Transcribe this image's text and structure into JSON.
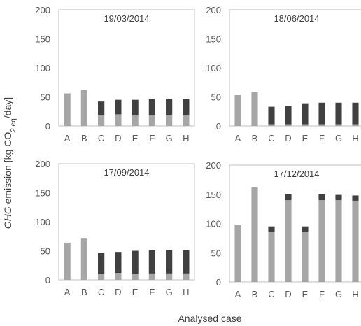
{
  "chart_data": {
    "type": "bar",
    "stacked": true,
    "ylabel": {
      "parts": [
        {
          "text": "GHG",
          "italic": true
        },
        {
          "text": " emission [kg CO"
        },
        {
          "text": "2 eq",
          "sub": true
        },
        {
          "text": "/day]"
        }
      ]
    },
    "xlabel": "Analysed case",
    "ylim": [
      0,
      200
    ],
    "yticks": [
      "0",
      "50",
      "100",
      "150",
      "200"
    ],
    "categories": [
      "A",
      "B",
      "C",
      "D",
      "E",
      "F",
      "G",
      "H"
    ],
    "colors": {
      "light": "#a6a6a6",
      "dark": "#404040"
    },
    "legend": "none",
    "grid": false,
    "panels": [
      {
        "title": "19/03/2014",
        "series": [
          {
            "color": "light",
            "values": [
              56,
              62,
              19,
              20,
              18,
              19,
              19,
              19
            ]
          },
          {
            "color": "dark",
            "values": [
              0,
              0,
              23,
              25,
              27,
              28,
              28,
              28
            ]
          }
        ]
      },
      {
        "title": "18/06/2014",
        "series": [
          {
            "color": "light",
            "values": [
              53,
              58,
              3,
              3,
              3,
              3,
              3,
              3
            ]
          },
          {
            "color": "dark",
            "values": [
              0,
              0,
              30,
              31,
              36,
              37,
              37,
              37
            ]
          }
        ]
      },
      {
        "title": "17/09/2014",
        "series": [
          {
            "color": "light",
            "values": [
              64,
              72,
              10,
              12,
              10,
              11,
              11,
              11
            ]
          },
          {
            "color": "dark",
            "values": [
              0,
              0,
              36,
              36,
              40,
              40,
              40,
              40
            ]
          }
        ]
      },
      {
        "title": "17/12/2014",
        "series": [
          {
            "color": "light",
            "values": [
              98,
              162,
              86,
              140,
              86,
              140,
              140,
              139
            ]
          },
          {
            "color": "dark",
            "values": [
              0,
              0,
              9,
              10,
              9,
              10,
              9,
              9
            ]
          }
        ]
      }
    ]
  }
}
